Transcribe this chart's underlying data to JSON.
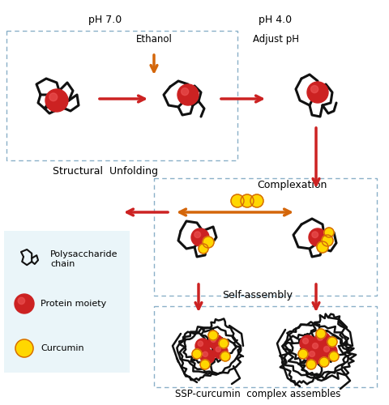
{
  "background_color": "#ffffff",
  "fig_width": 4.8,
  "fig_height": 5.0,
  "dpi": 100,
  "labels": {
    "ph70": "pH 7.0",
    "ph40": "pH 4.0",
    "ethanol": "Ethanol",
    "adjust_ph": "Adjust pH",
    "structural_unfolding": "Structural  Unfolding",
    "complexation": "Complexation",
    "self_assembly": "Self-assembly",
    "ssp_complex": "SSP-curcumin  complex assembles",
    "polysaccharide": "Polysaccharide\nchain",
    "protein": "Protein moiety",
    "curcumin": "Curcumin"
  },
  "colors": {
    "red": "#cc2222",
    "orange": "#d4660a",
    "yellow": "#FFD700",
    "black": "#111111",
    "light_blue": "#daeef5",
    "dashed_box": "#8ab0c8",
    "arrow_red": "#cc2222",
    "arrow_orange": "#d4660a"
  }
}
